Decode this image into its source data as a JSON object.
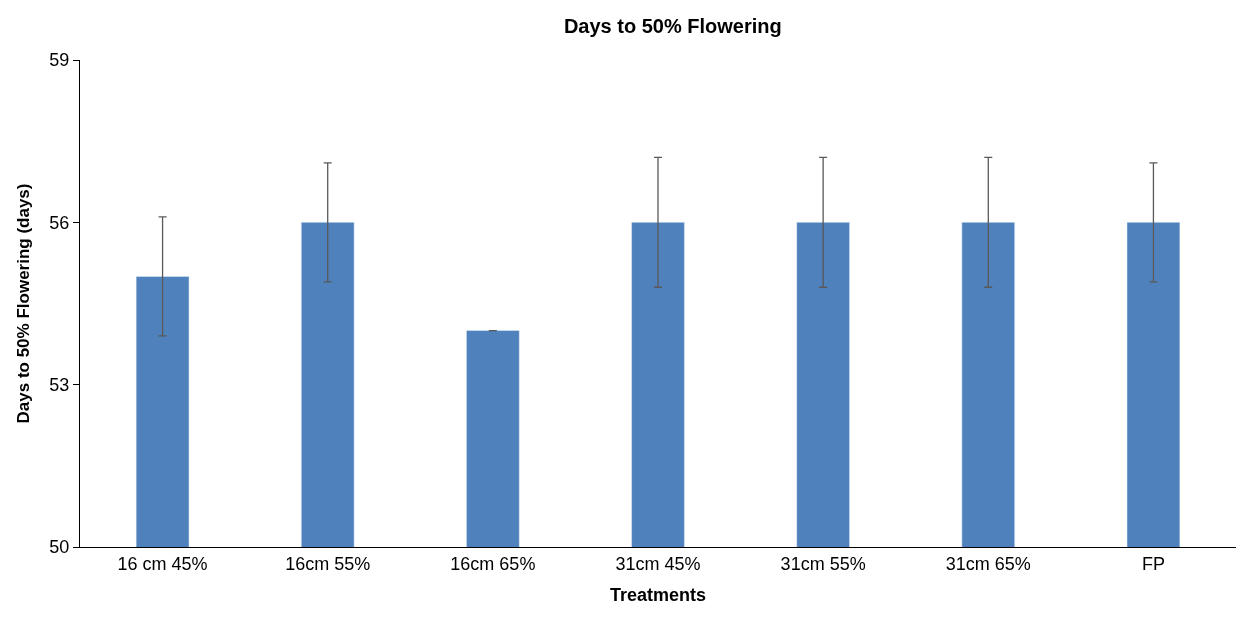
{
  "chart_data": {
    "type": "bar",
    "title": "Days to 50% Flowering",
    "xlabel": "Treatments",
    "ylabel": "Days to 50% Flowering (days)",
    "categories": [
      "16 cm 45%",
      "16cm 55%",
      "16cm 65%",
      "31cm 45%",
      "31cm 55%",
      "31cm 65%",
      "FP"
    ],
    "values": [
      55,
      56,
      54,
      56,
      56,
      56,
      56
    ],
    "errors": [
      1.1,
      1.1,
      0,
      1.2,
      1.2,
      1.2,
      1.1
    ],
    "color": "#4f81bd",
    "ylim": [
      50,
      59
    ],
    "yticks": [
      50,
      53,
      56,
      59
    ],
    "legend": false
  }
}
